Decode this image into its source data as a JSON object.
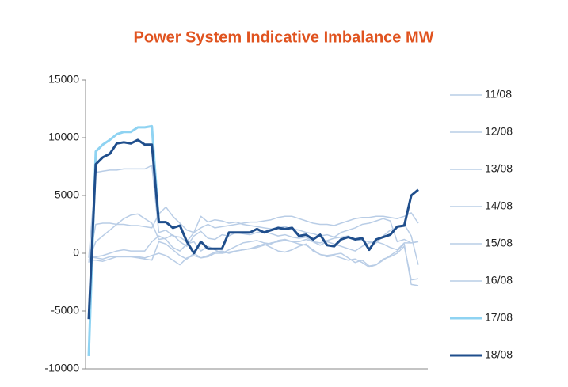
{
  "chart_data": {
    "type": "line",
    "title": "Power System Indicative Imbalance MW",
    "ylim": [
      -10000,
      15000
    ],
    "yticks": [
      -10000,
      -5000,
      0,
      5000,
      10000,
      15000
    ],
    "series": [
      {
        "name": "11/08",
        "color": "#b9cde6",
        "values": [
          -400,
          7000,
          7100,
          7200,
          7200,
          7300,
          7300,
          7300,
          7300,
          7600,
          1800,
          2000,
          1500,
          1400,
          1000,
          1800,
          2200,
          2500,
          2200,
          2300,
          2400,
          2500,
          2600,
          2700,
          2700,
          2800,
          2900,
          3100,
          3200,
          3200,
          3000,
          2800,
          2600,
          2500,
          2500,
          2400,
          2600,
          2800,
          3000,
          3100,
          3100,
          3200,
          3200,
          3100,
          3000,
          3200,
          3500,
          2600
        ]
      },
      {
        "name": "12/08",
        "color": "#b9cde6",
        "values": [
          -800,
          2500,
          2600,
          2600,
          2500,
          2500,
          2400,
          2400,
          2300,
          2200,
          3400,
          4000,
          3200,
          2600,
          2000,
          1800,
          3200,
          2700,
          2900,
          2800,
          2600,
          2700,
          2500,
          2400,
          2300,
          2200,
          2100,
          2200,
          2300,
          2100,
          2000,
          1800,
          1700,
          1500,
          1600,
          1400,
          1800,
          2000,
          2200,
          2500,
          2600,
          2800,
          3000,
          2800,
          1000,
          1200,
          900,
          1000
        ]
      },
      {
        "name": "13/08",
        "color": "#b9cde6",
        "values": [
          -600,
          1000,
          1500,
          2000,
          2500,
          3000,
          3300,
          3400,
          3000,
          2600,
          1200,
          1300,
          1600,
          1000,
          600,
          1500,
          1900,
          1300,
          1200,
          1600,
          1500,
          1800,
          1700,
          1600,
          1800,
          1900,
          1700,
          1500,
          1600,
          1400,
          1300,
          1400,
          1000,
          900,
          1100,
          1300,
          1400,
          1500,
          1200,
          1100,
          1000,
          900,
          1500,
          2000,
          2200,
          2500,
          1500,
          -1000
        ]
      },
      {
        "name": "14/08",
        "color": "#b9cde6",
        "values": [
          -400,
          -300,
          -200,
          0,
          200,
          300,
          200,
          200,
          200,
          1000,
          1500,
          1200,
          500,
          200,
          800,
          1000,
          200,
          600,
          300,
          0,
          300,
          600,
          900,
          1000,
          1100,
          900,
          800,
          1100,
          1200,
          1000,
          1000,
          1200,
          1000,
          700,
          1000,
          800,
          600,
          400,
          200,
          600,
          900,
          1000,
          800,
          500,
          300,
          900,
          900,
          1000
        ]
      },
      {
        "name": "15/08",
        "color": "#b9cde6",
        "values": [
          -600,
          -600,
          -700,
          -500,
          -300,
          -300,
          -300,
          -300,
          -400,
          -200,
          0,
          -200,
          -600,
          -1000,
          -400,
          -200,
          -400,
          -300,
          0,
          0,
          100,
          200,
          300,
          400,
          600,
          800,
          500,
          200,
          100,
          300,
          600,
          800,
          200,
          -100,
          -200,
          -100,
          0,
          -400,
          -800,
          -600,
          -1100,
          -1000,
          -600,
          -200,
          200,
          800,
          -2700,
          -2800
        ]
      },
      {
        "name": "16/08",
        "color": "#b9cde6",
        "values": [
          -300,
          -400,
          -500,
          -300,
          -300,
          -300,
          -300,
          -400,
          -500,
          -600,
          1000,
          800,
          300,
          -200,
          -500,
          0,
          -400,
          -200,
          100,
          200,
          0,
          200,
          300,
          400,
          500,
          700,
          900,
          1000,
          1100,
          1000,
          800,
          700,
          300,
          -100,
          -300,
          -200,
          -400,
          -600,
          -500,
          -800,
          -1200,
          -1000,
          -500,
          -300,
          0,
          600,
          -2300,
          -2200
        ]
      },
      {
        "name": "17/08",
        "color": "#8fd3f2",
        "values": [
          -8900,
          8800,
          9400,
          9800,
          10300,
          10500,
          10500,
          10900,
          10900,
          11000,
          2700,
          null,
          null,
          null,
          null,
          null,
          null,
          null,
          null,
          null,
          null,
          null,
          null,
          null,
          null,
          null,
          null,
          null,
          null,
          null,
          null,
          null,
          null,
          null,
          null,
          null,
          null,
          null,
          null,
          null,
          null,
          null,
          null,
          null,
          null,
          null,
          null,
          null
        ]
      },
      {
        "name": "18/08",
        "color": "#1f4e8c",
        "values": [
          -5700,
          7700,
          8300,
          8600,
          9500,
          9600,
          9500,
          9800,
          9400,
          9400,
          2700,
          2700,
          2200,
          2400,
          1000,
          0,
          1000,
          400,
          400,
          400,
          1800,
          1800,
          1800,
          1800,
          2100,
          1800,
          2000,
          2200,
          2100,
          2200,
          1500,
          1600,
          1200,
          1600,
          700,
          600,
          1200,
          1400,
          1200,
          1300,
          300,
          1200,
          1400,
          1600,
          2300,
          2400,
          5000,
          5500
        ]
      }
    ]
  }
}
